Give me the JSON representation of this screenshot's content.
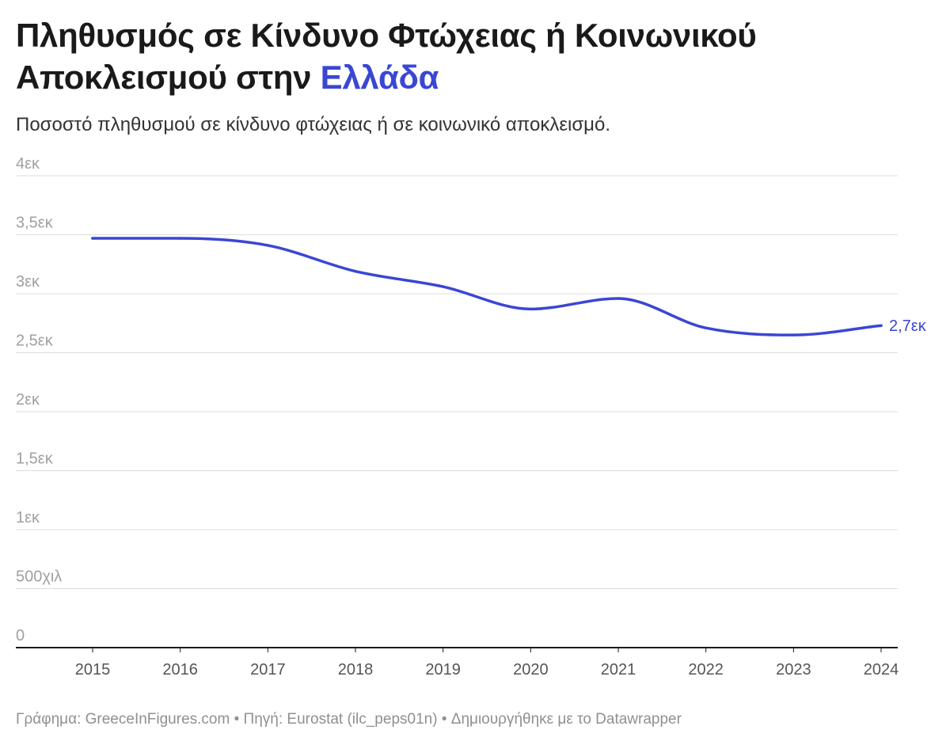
{
  "title": {
    "main": "Πληθυσμός σε Κίνδυνο Φτώχειας ή Κοινωνικού Αποκλεισμού στην ",
    "highlight": "Ελλάδα"
  },
  "subtitle": "Ποσοστό πληθυσμού σε κίνδυνο φτώχειας ή σε κοινωνικό αποκλεισμό.",
  "footer": "Γράφημα: GreeceInFigures.com • Πηγή: Eurostat (ilc_peps01n) • Δημιουργήθηκε με το Datawrapper",
  "colors": {
    "line": "#3a46d4",
    "grid": "#dddddd",
    "axis": "#1a1a1a",
    "tick_text": "#a0a0a0",
    "x_tick_text": "#555555"
  },
  "chart_data": {
    "type": "line",
    "x": [
      "2015",
      "2016",
      "2017",
      "2018",
      "2019",
      "2020",
      "2021",
      "2022",
      "2023",
      "2024"
    ],
    "series": [
      {
        "values": [
          3470000,
          3470000,
          3410000,
          3190000,
          3060000,
          2870000,
          2960000,
          2710000,
          2650000,
          2730000
        ],
        "end_label": "2,7εκ"
      }
    ],
    "ylim": [
      0,
      4000000
    ],
    "yticks": [
      {
        "value": 0,
        "label": "0"
      },
      {
        "value": 500000,
        "label": "500χιλ"
      },
      {
        "value": 1000000,
        "label": "1εκ"
      },
      {
        "value": 1500000,
        "label": "1,5εκ"
      },
      {
        "value": 2000000,
        "label": "2εκ"
      },
      {
        "value": 2500000,
        "label": "2,5εκ"
      },
      {
        "value": 3000000,
        "label": "3εκ"
      },
      {
        "value": 3500000,
        "label": "3,5εκ"
      },
      {
        "value": 4000000,
        "label": "4εκ"
      }
    ],
    "grid": true,
    "legend": "none"
  }
}
